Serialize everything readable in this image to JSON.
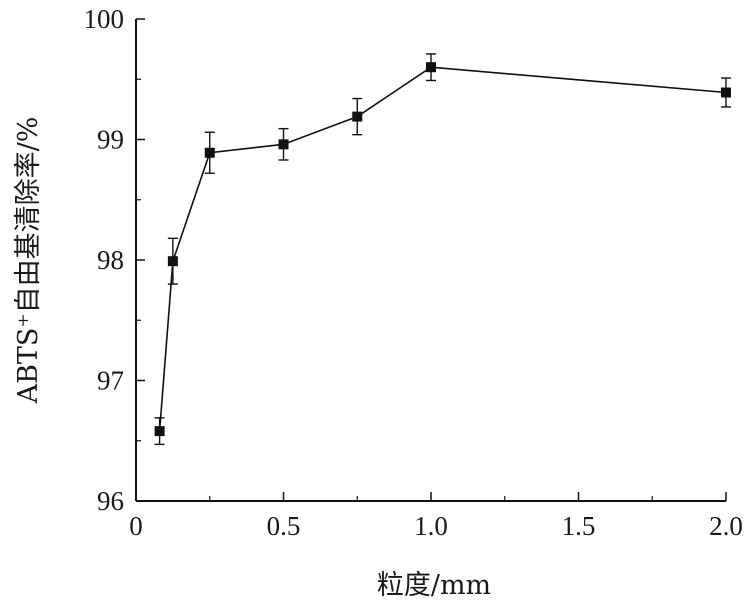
{
  "chart_data": {
    "type": "line",
    "xlabel": "粒度/mm",
    "ylabel": "ABTS⁺自由基清除率/%",
    "xlim": [
      0,
      2.0
    ],
    "ylim": [
      96,
      100
    ],
    "x_ticks": [
      0,
      0.5,
      1.0,
      1.5,
      2.0
    ],
    "x_tick_labels": [
      "0",
      "0.5",
      "1.0",
      "1.5",
      "2.0"
    ],
    "y_ticks": [
      96,
      97,
      98,
      99,
      100
    ],
    "y_tick_labels": [
      "96",
      "97",
      "98",
      "99",
      "100"
    ],
    "grid": false,
    "marker": "square",
    "series": [
      {
        "x": [
          0.08,
          0.125,
          0.25,
          0.5,
          0.75,
          1.0,
          2.0
        ],
        "y": [
          96.58,
          97.99,
          98.89,
          98.96,
          99.19,
          99.6,
          99.39
        ],
        "error": [
          0.11,
          0.19,
          0.17,
          0.13,
          0.15,
          0.11,
          0.12
        ]
      }
    ],
    "color": "#111111"
  }
}
